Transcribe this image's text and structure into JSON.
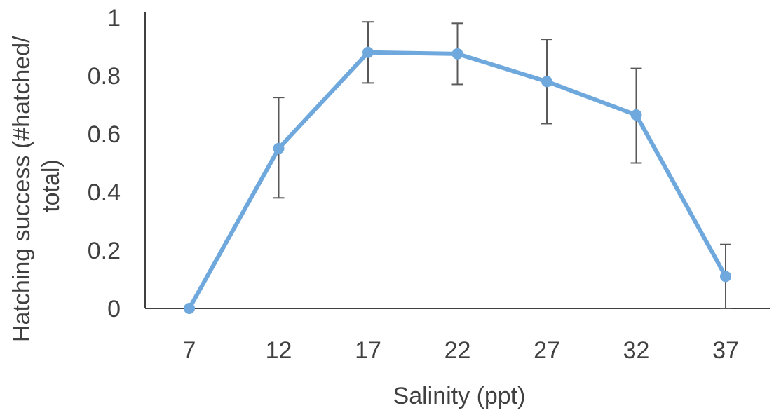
{
  "chart_data": {
    "type": "line",
    "title": "",
    "xlabel": "Salinity (ppt)",
    "ylabel_lines": [
      "Hatching success (#hatched/",
      "total)"
    ],
    "categories": [
      "7",
      "12",
      "17",
      "22",
      "27",
      "32",
      "37"
    ],
    "ylim": [
      0,
      1
    ],
    "y_ticks": [
      "0",
      "0.2",
      "0.4",
      "0.6",
      "0.8",
      "1"
    ],
    "grid": false,
    "legend": "none",
    "series": [
      {
        "values": [
          0,
          0.55,
          0.88,
          0.875,
          0.78,
          0.665,
          0.11
        ],
        "error_upper": [
          null,
          0.725,
          0.985,
          0.98,
          0.925,
          0.825,
          0.22
        ],
        "error_lower": [
          null,
          0.38,
          0.775,
          0.77,
          0.635,
          0.5,
          0.0
        ],
        "color": "#6fa8dc"
      }
    ],
    "axis_color": "#000000",
    "error_bar_color": "#595959",
    "text_color": "#404040"
  }
}
